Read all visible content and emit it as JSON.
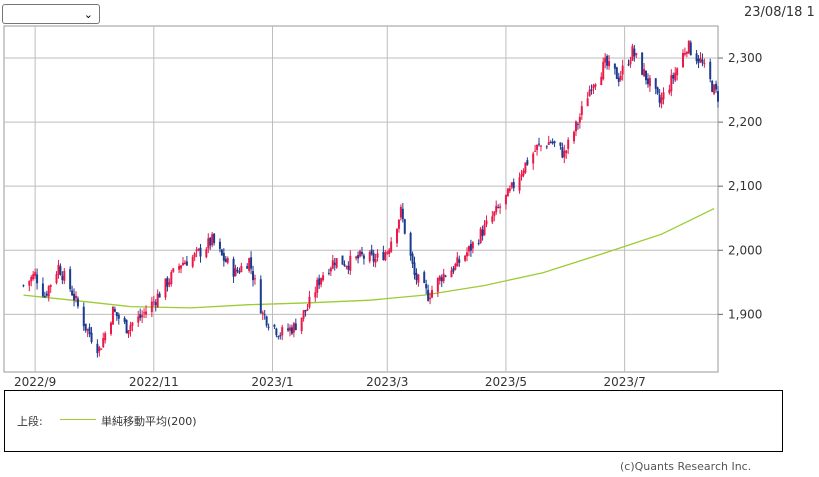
{
  "header": {
    "select_value": "",
    "date": "23/08/18 1"
  },
  "legend": {
    "label": "上段:",
    "series": "単純移動平均(200)"
  },
  "footer": {
    "copyright": "(c)Quants Research Inc."
  },
  "colors": {
    "up": "#e8194b",
    "down": "#1a3b8f",
    "ma": "#9acd32",
    "grid": "#bdbdbd"
  },
  "chart_data": {
    "type": "candlestick",
    "x_ticks": [
      "2022/9",
      "2022/11",
      "2023/1",
      "2023/3",
      "2023/5",
      "2023/7"
    ],
    "y_ticks": [
      "2,300",
      "2,200",
      "2,100",
      "2,000",
      "1,900"
    ],
    "ylim": [
      1810,
      2350
    ],
    "x_range": [
      "2022-08-16",
      "2023-08-18"
    ],
    "close_anchors": [
      [
        "2022-08-26",
        1945
      ],
      [
        "2022-09-01",
        1962
      ],
      [
        "2022-09-06",
        1930
      ],
      [
        "2022-09-13",
        1975
      ],
      [
        "2022-09-20",
        1935
      ],
      [
        "2022-09-27",
        1880
      ],
      [
        "2022-10-04",
        1845
      ],
      [
        "2022-10-11",
        1905
      ],
      [
        "2022-10-18",
        1880
      ],
      [
        "2022-10-25",
        1895
      ],
      [
        "2022-11-01",
        1920
      ],
      [
        "2022-11-08",
        1950
      ],
      [
        "2022-11-15",
        1980
      ],
      [
        "2022-11-22",
        1990
      ],
      [
        "2022-12-01",
        2015
      ],
      [
        "2022-12-06",
        1990
      ],
      [
        "2022-12-13",
        1965
      ],
      [
        "2022-12-20",
        1985
      ],
      [
        "2022-12-27",
        1900
      ],
      [
        "2023-01-05",
        1870
      ],
      [
        "2023-01-12",
        1880
      ],
      [
        "2023-01-19",
        1910
      ],
      [
        "2023-01-26",
        1960
      ],
      [
        "2023-02-02",
        1985
      ],
      [
        "2023-02-09",
        1980
      ],
      [
        "2023-02-16",
        1990
      ],
      [
        "2023-02-23",
        1985
      ],
      [
        "2023-03-01",
        2000
      ],
      [
        "2023-03-08",
        2060
      ],
      [
        "2023-03-15",
        1960
      ],
      [
        "2023-03-22",
        1930
      ],
      [
        "2023-03-29",
        1960
      ],
      [
        "2023-04-05",
        1975
      ],
      [
        "2023-04-12",
        2000
      ],
      [
        "2023-04-19",
        2030
      ],
      [
        "2023-04-26",
        2060
      ],
      [
        "2023-05-03",
        2090
      ],
      [
        "2023-05-10",
        2130
      ],
      [
        "2023-05-17",
        2160
      ],
      [
        "2023-05-24",
        2170
      ],
      [
        "2023-05-31",
        2150
      ],
      [
        "2023-06-07",
        2200
      ],
      [
        "2023-06-14",
        2260
      ],
      [
        "2023-06-21",
        2290
      ],
      [
        "2023-06-28",
        2270
      ],
      [
        "2023-07-05",
        2310
      ],
      [
        "2023-07-12",
        2270
      ],
      [
        "2023-07-19",
        2230
      ],
      [
        "2023-07-26",
        2270
      ],
      [
        "2023-08-02",
        2320
      ],
      [
        "2023-08-09",
        2295
      ],
      [
        "2023-08-16",
        2250
      ],
      [
        "2023-08-18",
        2240
      ]
    ],
    "ma_200": [
      [
        "2022-08-26",
        1930
      ],
      [
        "2022-09-20",
        1922
      ],
      [
        "2022-10-20",
        1912
      ],
      [
        "2022-11-20",
        1910
      ],
      [
        "2022-12-20",
        1915
      ],
      [
        "2023-01-20",
        1918
      ],
      [
        "2023-02-20",
        1922
      ],
      [
        "2023-03-20",
        1930
      ],
      [
        "2023-04-20",
        1945
      ],
      [
        "2023-05-20",
        1965
      ],
      [
        "2023-06-20",
        1995
      ],
      [
        "2023-07-20",
        2025
      ],
      [
        "2023-08-16",
        2065
      ]
    ]
  }
}
